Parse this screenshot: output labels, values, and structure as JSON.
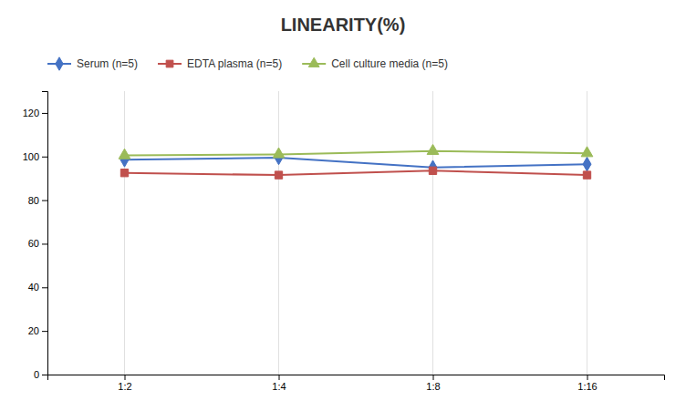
{
  "chart_data": {
    "type": "line",
    "title": "LINEARITY(%)",
    "categories": [
      "1:2",
      "1:4",
      "1:8",
      "1:16"
    ],
    "series": [
      {
        "name": "Serum (n=5)",
        "color": "#4472C4",
        "marker": "diamond",
        "values": [
          98.5,
          99.5,
          95.0,
          96.5
        ]
      },
      {
        "name": "EDTA plasma (n=5)",
        "color": "#C0504D",
        "marker": "square",
        "values": [
          92.5,
          91.5,
          93.5,
          91.5
        ]
      },
      {
        "name": "Cell culture media (n=5)",
        "color": "#9BBB59",
        "marker": "triangle",
        "values": [
          100.5,
          101.0,
          102.5,
          101.5
        ]
      }
    ],
    "ylim": [
      0,
      130
    ],
    "yticks": [
      0,
      20,
      40,
      60,
      80,
      100,
      120
    ],
    "grid": true,
    "legend": "top"
  }
}
